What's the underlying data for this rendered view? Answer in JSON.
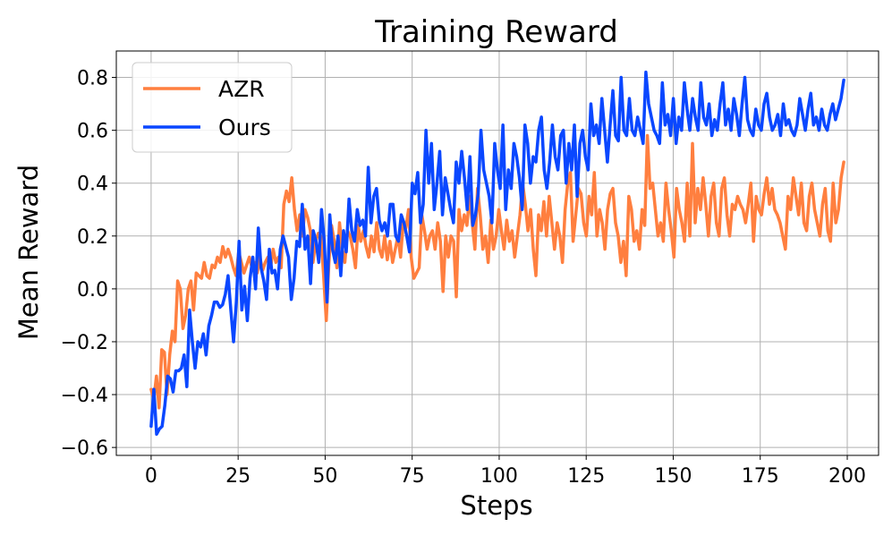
{
  "chart_data": {
    "type": "line",
    "title": "Training Reward",
    "xlabel": "Steps",
    "ylabel": "Mean Reward",
    "xlim": [
      -10,
      209
    ],
    "ylim": [
      -0.63,
      0.9
    ],
    "xticks": [
      0,
      25,
      50,
      75,
      100,
      125,
      150,
      175,
      200
    ],
    "yticks": [
      -0.6,
      -0.4,
      -0.2,
      0.0,
      0.2,
      0.4,
      0.6,
      0.8
    ],
    "xtick_labels": [
      "0",
      "25",
      "50",
      "75",
      "100",
      "125",
      "150",
      "175",
      "200"
    ],
    "ytick_labels": [
      "−0.6",
      "−0.4",
      "−0.2",
      "0.0",
      "0.2",
      "0.4",
      "0.6",
      "0.8"
    ],
    "grid": true,
    "legend_position": "top-left",
    "series": [
      {
        "name": "AZR",
        "color": "#ff7f3f",
        "values": [
          -0.38,
          -0.42,
          -0.33,
          -0.45,
          -0.23,
          -0.24,
          -0.4,
          -0.25,
          -0.16,
          -0.2,
          0.03,
          0.0,
          -0.15,
          -0.1,
          0.0,
          0.03,
          -0.08,
          0.06,
          0.05,
          0.04,
          0.1,
          0.05,
          0.04,
          0.09,
          0.08,
          0.12,
          0.1,
          0.16,
          0.12,
          0.15,
          0.12,
          0.08,
          0.05,
          0.14,
          0.1,
          0.06,
          0.09,
          0.12,
          0.08,
          0.1,
          0.06,
          0.12,
          0.07,
          0.1,
          0.12,
          0.08,
          0.15,
          0.1,
          0.12,
          0.08,
          0.32,
          0.37,
          0.33,
          0.42,
          0.3,
          0.22,
          0.28,
          0.2,
          0.3,
          0.27,
          0.22,
          0.1,
          0.18,
          0.21,
          0.2,
          0.05,
          -0.12,
          0.1,
          0.24,
          0.18,
          0.08,
          0.25,
          0.15,
          0.1,
          0.22,
          0.2,
          0.15,
          0.08,
          0.24,
          0.18,
          0.22,
          0.16,
          0.12,
          0.2,
          0.14,
          0.25,
          0.15,
          0.12,
          0.2,
          0.11,
          0.18,
          0.1,
          0.15,
          0.2,
          0.12,
          0.25,
          0.23,
          0.3,
          0.12,
          0.04,
          0.06,
          0.08,
          0.28,
          0.22,
          0.15,
          0.2,
          0.22,
          0.15,
          0.25,
          0.18,
          -0.01,
          0.2,
          0.12,
          0.2,
          0.18,
          -0.03,
          0.3,
          0.22,
          0.28,
          0.24,
          0.35,
          0.25,
          0.15,
          0.38,
          0.28,
          0.15,
          0.2,
          0.1,
          0.26,
          0.15,
          0.2,
          0.3,
          0.22,
          0.15,
          0.26,
          0.18,
          0.22,
          0.12,
          0.2,
          0.28,
          0.4,
          0.32,
          0.22,
          0.3,
          0.15,
          0.05,
          0.28,
          0.22,
          0.33,
          0.2,
          0.35,
          0.25,
          0.15,
          0.25,
          0.2,
          0.1,
          0.3,
          0.4,
          0.44,
          0.18,
          0.28,
          0.38,
          0.36,
          0.25,
          0.2,
          0.35,
          0.28,
          0.44,
          0.2,
          0.3,
          0.25,
          0.15,
          0.3,
          0.36,
          0.38,
          0.25,
          0.2,
          0.1,
          0.18,
          0.05,
          0.35,
          0.3,
          0.18,
          0.22,
          0.15,
          0.3,
          0.24,
          0.58,
          0.38,
          0.4,
          0.3,
          0.2,
          0.25,
          0.18,
          0.4,
          0.3,
          0.22,
          0.12,
          0.38,
          0.3,
          0.25,
          0.18,
          0.4,
          0.2,
          0.55,
          0.25,
          0.38,
          0.3,
          0.42,
          0.32,
          0.2,
          0.35,
          0.4,
          0.25,
          0.2,
          0.38,
          0.42,
          0.28,
          0.2,
          0.32,
          0.3,
          0.35,
          0.32,
          0.3,
          0.25,
          0.32,
          0.4,
          0.18,
          0.35,
          0.3,
          0.28,
          0.36,
          0.42,
          0.32,
          0.38,
          0.3,
          0.28,
          0.25,
          0.2,
          0.15,
          0.35,
          0.3,
          0.42,
          0.35,
          0.28,
          0.4,
          0.25,
          0.22,
          0.35,
          0.4,
          0.3,
          0.25,
          0.2,
          0.32,
          0.38,
          0.22,
          0.18,
          0.4,
          0.25,
          0.3,
          0.42,
          0.48
        ]
      },
      {
        "name": "Ours",
        "color": "#0a47ff",
        "values": [
          -0.52,
          -0.38,
          -0.55,
          -0.53,
          -0.52,
          -0.44,
          -0.33,
          -0.34,
          -0.39,
          -0.31,
          -0.31,
          -0.3,
          -0.25,
          -0.37,
          -0.08,
          -0.2,
          -0.3,
          -0.2,
          -0.22,
          -0.17,
          -0.25,
          -0.14,
          -0.1,
          -0.05,
          -0.05,
          -0.07,
          -0.06,
          -0.02,
          0.05,
          -0.08,
          -0.2,
          -0.05,
          0.18,
          -0.08,
          0.01,
          -0.12,
          0.04,
          0.12,
          0.0,
          0.23,
          0.08,
          0.03,
          -0.04,
          0.15,
          0.06,
          0.07,
          0.0,
          0.15,
          0.2,
          0.16,
          0.12,
          -0.04,
          0.04,
          0.18,
          0.16,
          0.32,
          0.15,
          0.2,
          0.02,
          0.22,
          0.18,
          0.1,
          0.3,
          0.18,
          -0.05,
          0.28,
          0.15,
          0.1,
          0.2,
          0.05,
          0.22,
          0.14,
          0.34,
          0.22,
          0.18,
          0.3,
          0.24,
          0.26,
          0.2,
          0.46,
          0.25,
          0.35,
          0.38,
          0.26,
          0.22,
          0.25,
          0.2,
          0.32,
          0.32,
          0.2,
          0.18,
          0.28,
          0.25,
          0.2,
          0.14,
          0.4,
          0.36,
          0.44,
          0.25,
          0.32,
          0.6,
          0.4,
          0.55,
          0.3,
          0.4,
          0.52,
          0.28,
          0.42,
          0.36,
          0.3,
          0.25,
          0.48,
          0.4,
          0.52,
          0.42,
          0.3,
          0.5,
          0.24,
          0.28,
          0.36,
          0.6,
          0.45,
          0.4,
          0.35,
          0.25,
          0.55,
          0.45,
          0.38,
          0.62,
          0.3,
          0.45,
          0.38,
          0.55,
          0.5,
          0.42,
          0.3,
          0.62,
          0.55,
          0.4,
          0.5,
          0.48,
          0.6,
          0.65,
          0.45,
          0.38,
          0.48,
          0.62,
          0.5,
          0.45,
          0.58,
          0.6,
          0.4,
          0.55,
          0.45,
          0.62,
          0.35,
          0.55,
          0.6,
          0.5,
          0.45,
          0.7,
          0.58,
          0.62,
          0.55,
          0.72,
          0.6,
          0.48,
          0.62,
          0.75,
          0.58,
          0.56,
          0.8,
          0.6,
          0.58,
          0.72,
          0.6,
          0.58,
          0.65,
          0.6,
          0.55,
          0.82,
          0.7,
          0.65,
          0.6,
          0.58,
          0.55,
          0.78,
          0.62,
          0.66,
          0.58,
          0.72,
          0.55,
          0.65,
          0.6,
          0.78,
          0.68,
          0.6,
          0.72,
          0.65,
          0.6,
          0.78,
          0.65,
          0.62,
          0.7,
          0.58,
          0.64,
          0.6,
          0.7,
          0.78,
          0.62,
          0.68,
          0.6,
          0.72,
          0.66,
          0.58,
          0.7,
          0.8,
          0.64,
          0.6,
          0.58,
          0.68,
          0.62,
          0.6,
          0.7,
          0.74,
          0.65,
          0.6,
          0.62,
          0.66,
          0.58,
          0.7,
          0.62,
          0.64,
          0.6,
          0.58,
          0.62,
          0.72,
          0.66,
          0.6,
          0.68,
          0.74,
          0.62,
          0.65,
          0.6,
          0.68,
          0.62,
          0.6,
          0.66,
          0.7,
          0.64,
          0.68,
          0.72,
          0.79
        ]
      }
    ]
  }
}
